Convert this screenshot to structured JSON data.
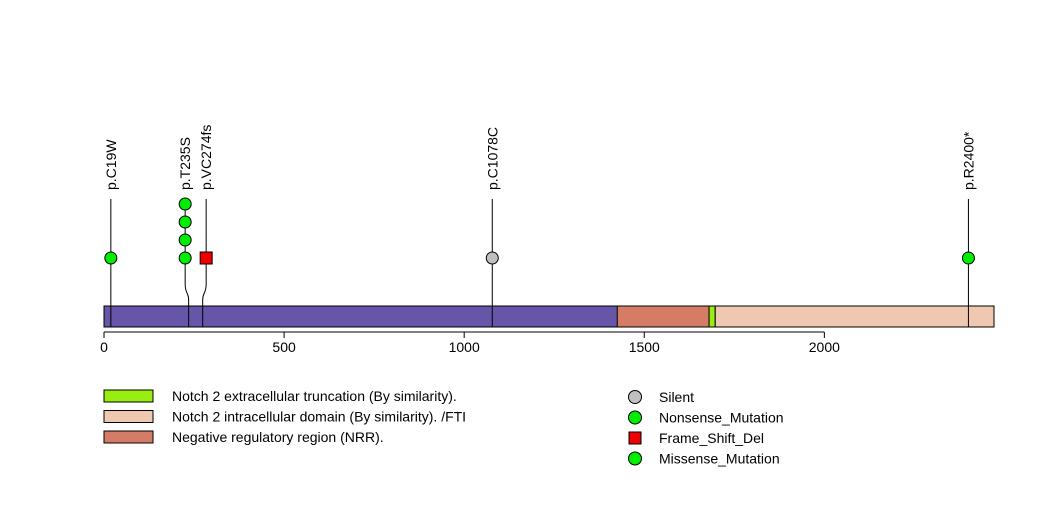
{
  "chart_data": {
    "type": "lollipop",
    "protein_length": 2471,
    "x_ticks": [
      0,
      500,
      1000,
      1500,
      2000
    ],
    "x_tick_labels": [
      "0",
      "500",
      "1000",
      "1500",
      "2000"
    ],
    "colors": {
      "backbone": "#6655a8",
      "Silent": "#c0c0c0",
      "Nonsense_Mutation": "#00ee00",
      "Frame_Shift_Del": "#ee0000",
      "Missense_Mutation": "#00ee00"
    },
    "domains": [
      {
        "name": "Negative regulatory region (NRR).",
        "start": 1425,
        "end": 1680,
        "color": "#d47c66"
      },
      {
        "name": "Notch 2 extracellular truncation (By similarity).",
        "start": 1680,
        "end": 1697,
        "color": "#99ee11"
      },
      {
        "name": "Notch 2 intracellular domain (By similarity). /FTI",
        "start": 1697,
        "end": 2471,
        "color": "#eec8b0"
      }
    ],
    "mutations": [
      {
        "label": "p.C19W",
        "position": 19,
        "count": 1,
        "type": "Nonsense_Mutation"
      },
      {
        "label": "p.T235S",
        "position": 235,
        "count": 4,
        "type": "Missense_Mutation"
      },
      {
        "label": "p.VC274fs",
        "position": 274,
        "count": 1,
        "type": "Frame_Shift_Del"
      },
      {
        "label": "p.C1078C",
        "position": 1078,
        "count": 1,
        "type": "Silent"
      },
      {
        "label": "p.R2400*",
        "position": 2400,
        "count": 1,
        "type": "Nonsense_Mutation"
      }
    ]
  },
  "legend": {
    "domains": [
      {
        "label": "Notch 2 extracellular truncation (By similarity).",
        "color": "#99ee11"
      },
      {
        "label": "Notch 2 intracellular domain (By similarity). /FTI",
        "color": "#eec8b0"
      },
      {
        "label": "Negative regulatory region (NRR).",
        "color": "#d47c66"
      }
    ],
    "mutation_types": [
      {
        "label": "Silent",
        "color": "#c0c0c0",
        "shape": "circle"
      },
      {
        "label": "Nonsense_Mutation",
        "color": "#00ee00",
        "shape": "circle"
      },
      {
        "label": "Frame_Shift_Del",
        "color": "#ee0000",
        "shape": "square"
      },
      {
        "label": "Missense_Mutation",
        "color": "#00ee00",
        "shape": "circle"
      }
    ]
  }
}
